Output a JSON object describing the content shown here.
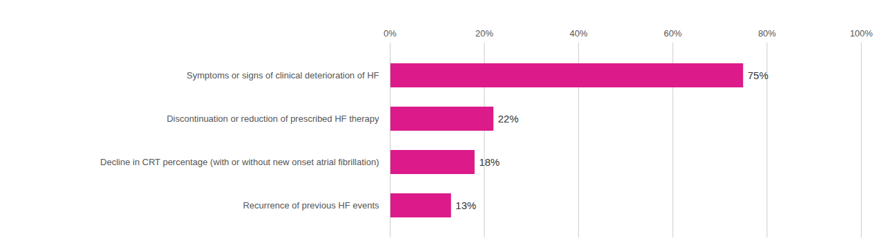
{
  "chart_data": {
    "type": "bar",
    "orientation": "horizontal",
    "categories": [
      "Symptoms or signs of clinical deterioration of HF",
      "Discontinuation or reduction of prescribed HF therapy",
      "Decline in CRT percentage (with or without new onset atrial fibrillation)",
      "Recurrence of previous HF events"
    ],
    "values": [
      75,
      22,
      18,
      13
    ],
    "value_labels": [
      "75%",
      "22%",
      "18%",
      "13%"
    ],
    "data_labels": true,
    "color": "#dc1a8a",
    "xlim": [
      0,
      100
    ],
    "xticks": [
      {
        "value": 0,
        "label": "0%"
      },
      {
        "value": 20,
        "label": "20%"
      },
      {
        "value": 40,
        "label": "40%"
      },
      {
        "value": 60,
        "label": "60%"
      },
      {
        "value": 80,
        "label": "80%"
      },
      {
        "value": 100,
        "label": "100%"
      }
    ],
    "grid": true
  }
}
